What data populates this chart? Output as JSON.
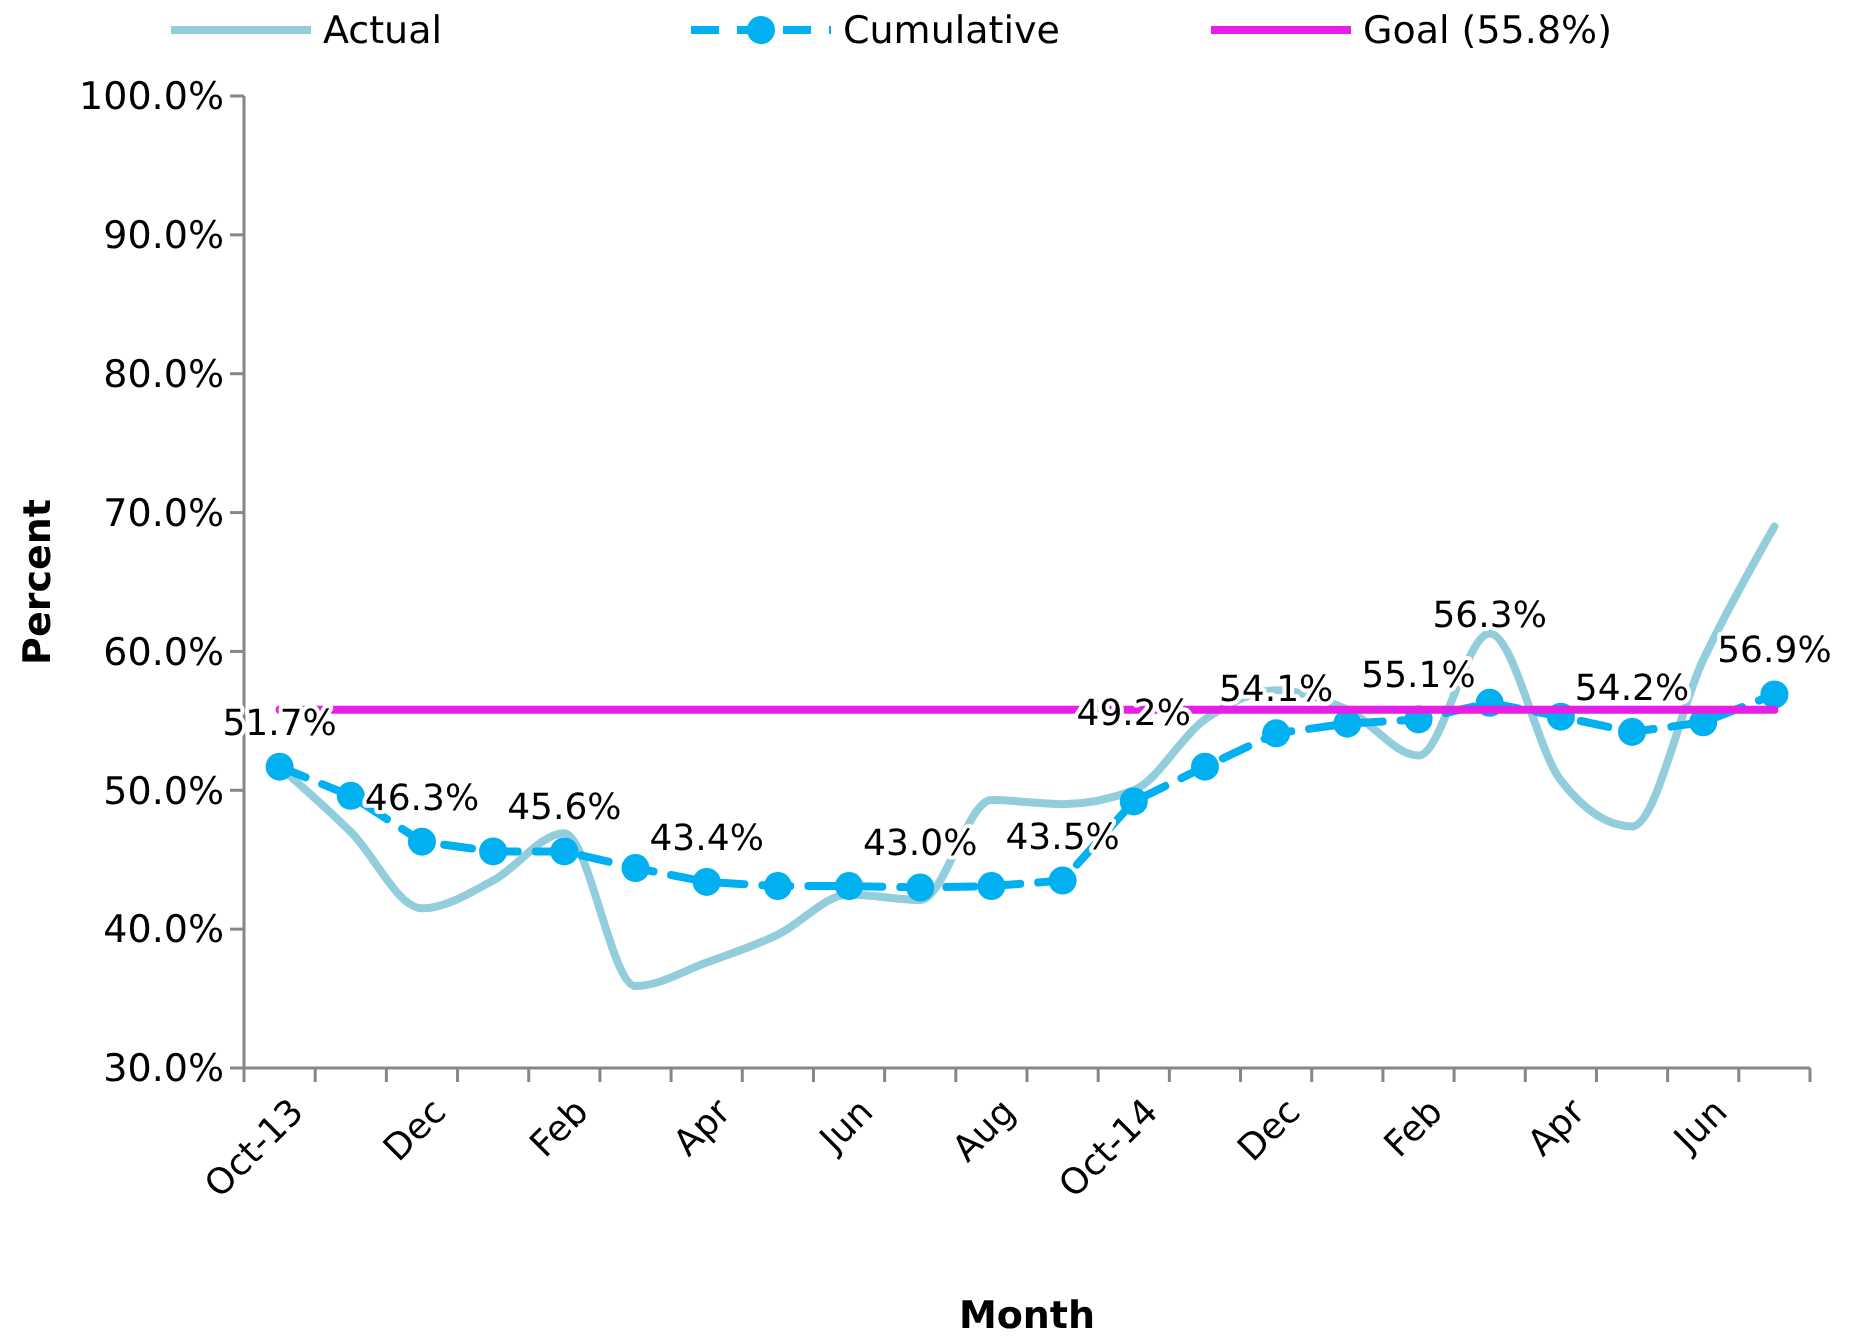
{
  "chart_data": {
    "type": "line",
    "xlabel": "Month",
    "ylabel": "Percent",
    "categories": [
      "Oct-13",
      null,
      "Dec",
      null,
      "Feb",
      null,
      "Apr",
      null,
      "Jun",
      null,
      "Aug",
      null,
      "Oct-14",
      null,
      "Dec",
      null,
      "Feb",
      null,
      "Apr",
      null,
      "Jun",
      null
    ],
    "ylim": [
      30,
      100
    ],
    "yticks": [
      {
        "value": 30,
        "label": "30.0%"
      },
      {
        "value": 40,
        "label": "40.0%"
      },
      {
        "value": 50,
        "label": "50.0%"
      },
      {
        "value": 60,
        "label": "60.0%"
      },
      {
        "value": 70,
        "label": "70.0%"
      },
      {
        "value": 80,
        "label": "80.0%"
      },
      {
        "value": 90,
        "label": "90.0%"
      },
      {
        "value": 100,
        "label": "100.0%"
      }
    ],
    "grid": false,
    "legend": "top",
    "series": [
      {
        "name": "Actual",
        "color": "#92cddc",
        "line_style": "solid",
        "marker": "none",
        "values": [
          51.7,
          47,
          41.5,
          43.5,
          46.9,
          35.9,
          37.6,
          39.6,
          42.5,
          42.1,
          49.3,
          49.0,
          50,
          55.1,
          57.2,
          55.8,
          52.5,
          61.3,
          50.7,
          47.4,
          59.4,
          69.0
        ]
      },
      {
        "name": "Cumulative",
        "color": "#00b0f0",
        "line_style": "dashed",
        "marker": "circle",
        "values": [
          51.7,
          49.6,
          46.3,
          45.6,
          45.6,
          44.4,
          43.4,
          43.1,
          43.1,
          43.0,
          43.1,
          43.5,
          49.2,
          51.7,
          54.1,
          54.8,
          55.1,
          56.3,
          55.3,
          54.2,
          54.9,
          56.9
        ],
        "value_labels": [
          "51.7%",
          null,
          "46.3%",
          null,
          "45.6%",
          null,
          "43.4%",
          null,
          null,
          "43.0%",
          null,
          "43.5%",
          "49.2%",
          null,
          "54.1%",
          null,
          "55.1%",
          "56.3%",
          null,
          "54.2%",
          null,
          "56.9%"
        ]
      },
      {
        "name": "Goal (55.8%)",
        "color": "#e61ee6",
        "line_style": "solid",
        "marker": "none",
        "values": [
          55.8,
          55.8,
          55.8,
          55.8,
          55.8,
          55.8,
          55.8,
          55.8,
          55.8,
          55.8,
          55.8,
          55.8,
          55.8,
          55.8,
          55.8,
          55.8,
          55.8,
          55.8,
          55.8,
          55.8,
          55.8,
          55.8
        ]
      }
    ]
  }
}
